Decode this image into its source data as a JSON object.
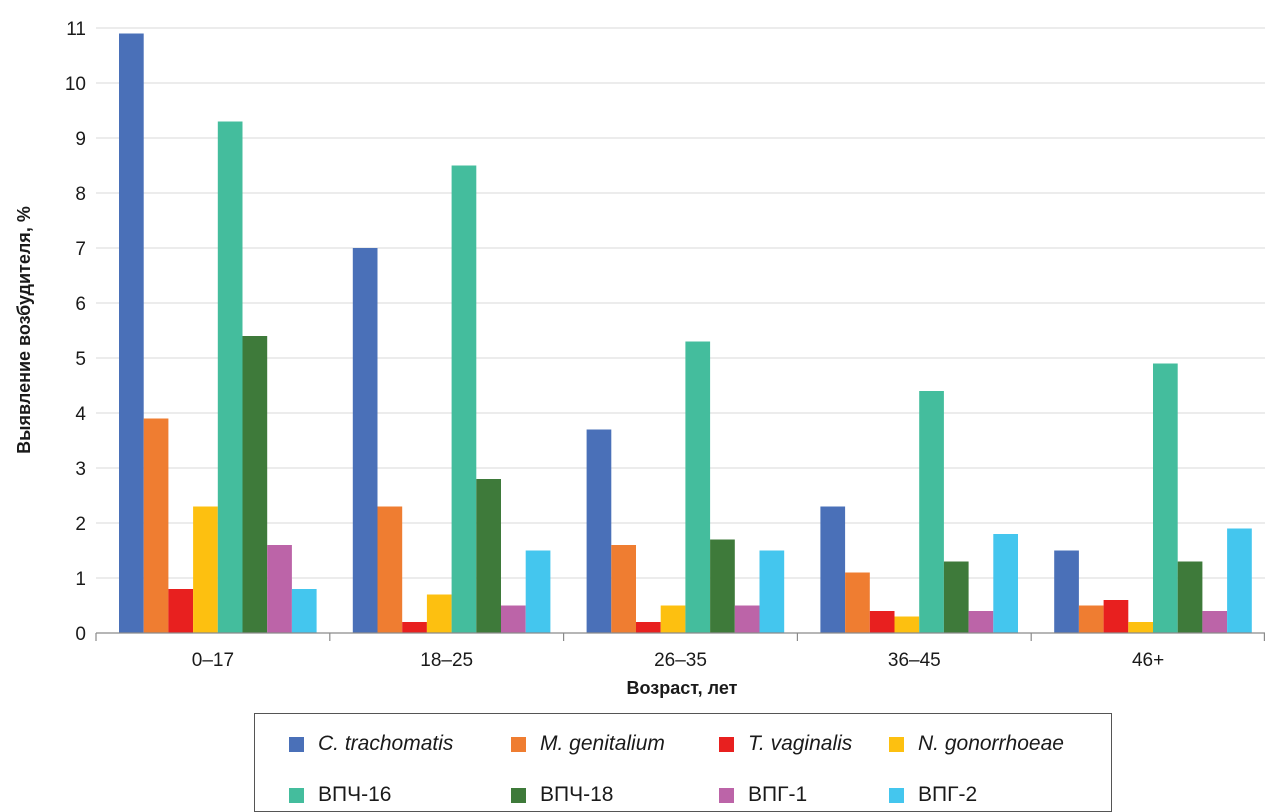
{
  "chart_data": {
    "type": "bar",
    "title": "",
    "xlabel": "Возраст, лет",
    "ylabel": "Выявление возбудителя, %",
    "ylim": [
      0,
      11
    ],
    "yticks": [
      "0",
      "1",
      "2",
      "3",
      "4",
      "5",
      "6",
      "7",
      "8",
      "9",
      "10",
      "11"
    ],
    "grid": true,
    "legend_position": "bottom",
    "categories": [
      "0–17",
      "18–25",
      "26–35",
      "36–45",
      "46+"
    ],
    "series": [
      {
        "name": "C. trachomatis",
        "italic": true,
        "color": "#4a70b8",
        "values": [
          10.9,
          7.0,
          3.7,
          2.3,
          1.5
        ]
      },
      {
        "name": "M. genitalium",
        "italic": true,
        "color": "#ef7d31",
        "values": [
          3.9,
          2.3,
          1.6,
          1.1,
          0.5
        ]
      },
      {
        "name": "T. vaginalis",
        "italic": true,
        "color": "#e8201f",
        "values": [
          0.8,
          0.2,
          0.2,
          0.4,
          0.6
        ]
      },
      {
        "name": "N. gonorrhoeae",
        "italic": true,
        "color": "#fdc010",
        "values": [
          2.3,
          0.7,
          0.5,
          0.3,
          0.2
        ]
      },
      {
        "name": "ВПЧ-16",
        "italic": false,
        "color": "#44bd9d",
        "values": [
          9.3,
          8.5,
          5.3,
          4.4,
          4.9
        ]
      },
      {
        "name": "ВПЧ-18",
        "italic": false,
        "color": "#3e7a3a",
        "values": [
          5.4,
          2.8,
          1.7,
          1.3,
          1.3
        ]
      },
      {
        "name": "ВПГ-1",
        "italic": false,
        "color": "#bc64a8",
        "values": [
          1.6,
          0.5,
          0.5,
          0.4,
          0.4
        ]
      },
      {
        "name": "ВПГ-2",
        "italic": false,
        "color": "#44c6ee",
        "values": [
          0.8,
          1.5,
          1.5,
          1.8,
          1.9
        ]
      }
    ]
  }
}
